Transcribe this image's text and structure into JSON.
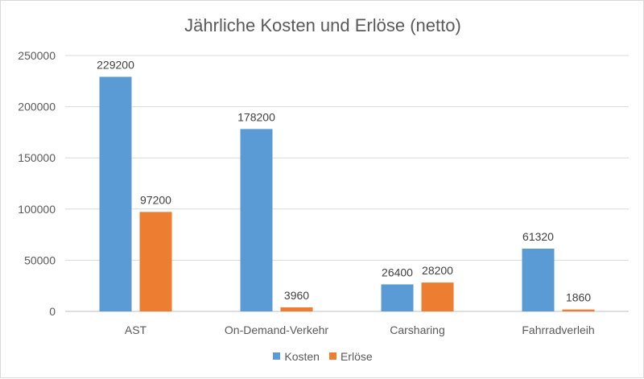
{
  "chart_data": {
    "type": "bar",
    "title": "Jährliche Kosten und Erlöse (netto)",
    "categories": [
      "AST",
      "On-Demand-Verkehr",
      "Carsharing",
      "Fahrradverleih"
    ],
    "series": [
      {
        "name": "Kosten",
        "color": "#5b9bd5",
        "values": [
          229200,
          178200,
          26400,
          61320
        ]
      },
      {
        "name": "Erlöse",
        "color": "#ed7d31",
        "values": [
          97200,
          3960,
          28200,
          1860
        ]
      }
    ],
    "yticks": [
      "0",
      "50000",
      "100000",
      "150000",
      "200000",
      "250000"
    ],
    "ylim": [
      0,
      250000
    ],
    "grid": true,
    "legend": "bottom"
  }
}
